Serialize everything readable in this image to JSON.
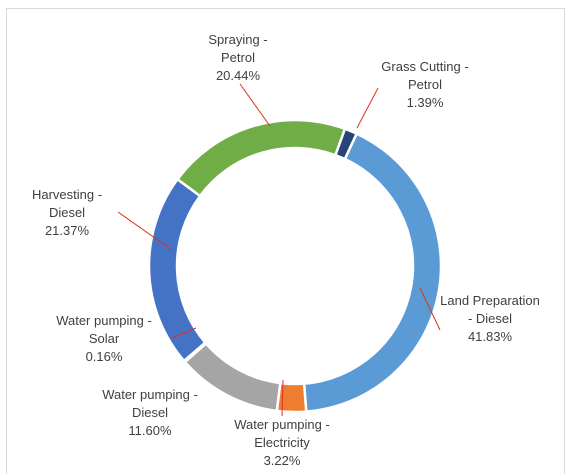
{
  "chart_data": {
    "type": "donut",
    "categories": [
      "Grass Cutting - Petrol",
      "Land Preparation - Diesel",
      "Water pumping - Electricity",
      "Water pumping - Diesel",
      "Water pumping - Solar",
      "Harvesting - Diesel",
      "Spraying - Petrol"
    ],
    "values": [
      1.39,
      41.83,
      3.22,
      11.6,
      0.16,
      21.37,
      20.44
    ],
    "value_labels": [
      "1.39%",
      "41.83%",
      "3.22%",
      "11.60%",
      "0.16%",
      "21.37%",
      "20.44%"
    ],
    "colors": [
      "#264478",
      "#5b9bd5",
      "#ed7d31",
      "#a5a5a5",
      "#ffc000",
      "#4472c4",
      "#70ad47"
    ]
  }
}
